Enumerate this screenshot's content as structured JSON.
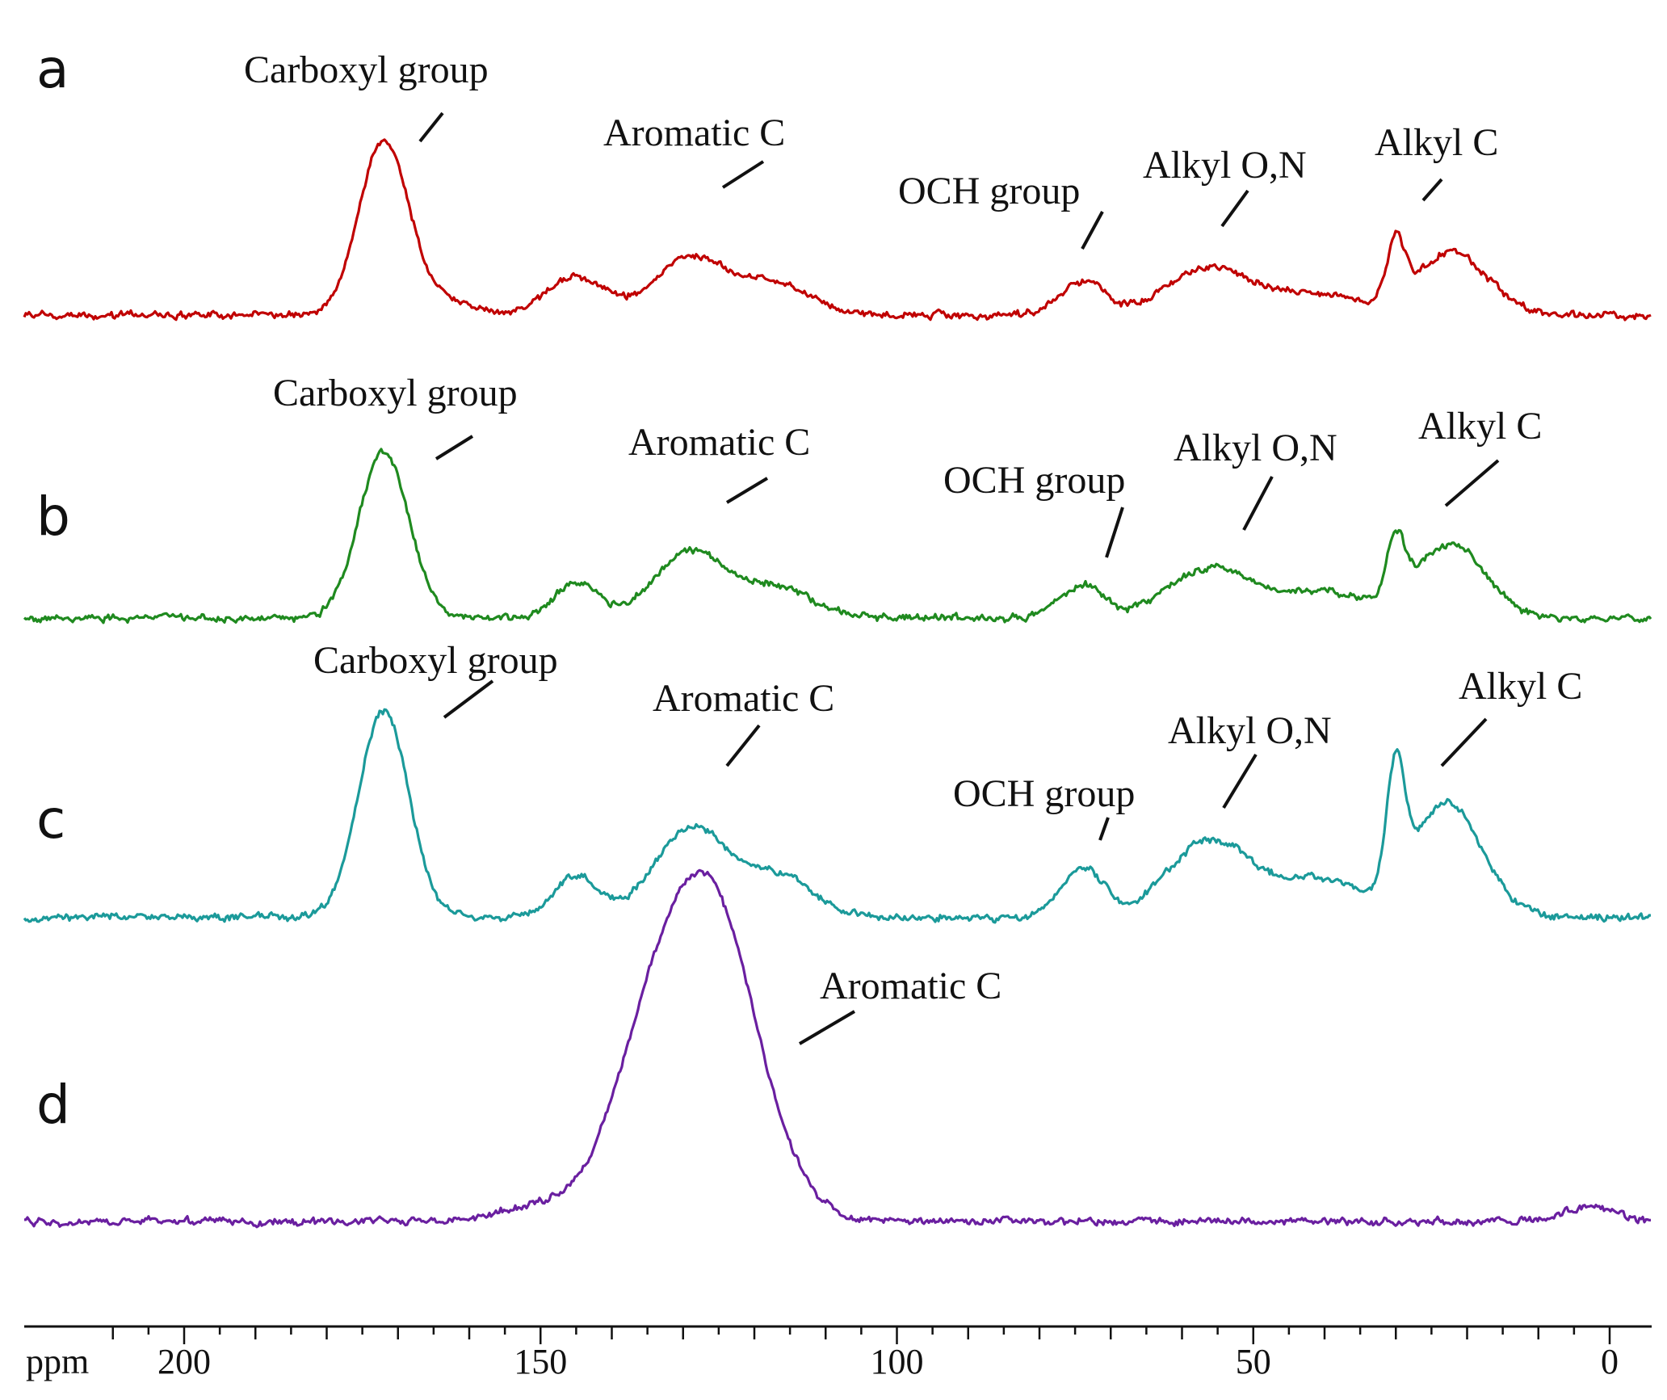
{
  "chart_data": {
    "type": "line",
    "title": "",
    "xlabel": "ppm",
    "ylabel": "",
    "x_axis": {
      "reversed": true,
      "unit_label": "ppm",
      "xlim": [
        215,
        -5
      ],
      "major_ticks": [
        200,
        150,
        100,
        50,
        0
      ],
      "major_tick_labels": [
        "200",
        "150",
        "100",
        "50",
        "0"
      ],
      "minor_tick_step": 10
    },
    "grid": false,
    "series": [
      {
        "name": "a",
        "color": "#c00000",
        "peaks": [
          {
            "ppm": 172,
            "height": 1.0,
            "width": 3.5
          },
          {
            "ppm": 163,
            "height": 0.08,
            "width": 4
          },
          {
            "ppm": 145,
            "height": 0.22,
            "width": 4
          },
          {
            "ppm": 129,
            "height": 0.33,
            "width": 5
          },
          {
            "ppm": 117,
            "height": 0.18,
            "width": 5
          },
          {
            "ppm": 74,
            "height": 0.2,
            "width": 3
          },
          {
            "ppm": 56,
            "height": 0.28,
            "width": 6
          },
          {
            "ppm": 40,
            "height": 0.12,
            "width": 6
          },
          {
            "ppm": 30,
            "height": 0.34,
            "width": 1.3
          },
          {
            "ppm": 24,
            "height": 0.26,
            "width": 4
          },
          {
            "ppm": 19,
            "height": 0.18,
            "width": 4
          }
        ],
        "annotations": [
          {
            "label": "Carboxyl group",
            "ppm": 172
          },
          {
            "label": "Aromatic C",
            "ppm": 129
          },
          {
            "label": "OCH group",
            "ppm": 74
          },
          {
            "label": "Alkyl O,N",
            "ppm": 56
          },
          {
            "label": "Alkyl C",
            "ppm": 24
          }
        ]
      },
      {
        "name": "b",
        "color": "#1f8a1f",
        "peaks": [
          {
            "ppm": 172,
            "height": 1.0,
            "width": 3.5
          },
          {
            "ppm": 145,
            "height": 0.22,
            "width": 3
          },
          {
            "ppm": 129,
            "height": 0.4,
            "width": 5
          },
          {
            "ppm": 117,
            "height": 0.18,
            "width": 5
          },
          {
            "ppm": 74,
            "height": 0.2,
            "width": 3
          },
          {
            "ppm": 56,
            "height": 0.3,
            "width": 6
          },
          {
            "ppm": 40,
            "height": 0.16,
            "width": 6
          },
          {
            "ppm": 30,
            "height": 0.38,
            "width": 1.3
          },
          {
            "ppm": 24,
            "height": 0.33,
            "width": 4
          },
          {
            "ppm": 19,
            "height": 0.2,
            "width": 4
          }
        ],
        "annotations": [
          {
            "label": "Carboxyl group",
            "ppm": 172
          },
          {
            "label": "Aromatic C",
            "ppm": 129
          },
          {
            "label": "OCH group",
            "ppm": 73
          },
          {
            "label": "Alkyl O,N",
            "ppm": 55
          },
          {
            "label": "Alkyl C",
            "ppm": 24
          }
        ]
      },
      {
        "name": "c",
        "color": "#1b9a9a",
        "peaks": [
          {
            "ppm": 172,
            "height": 1.0,
            "width": 3.5
          },
          {
            "ppm": 145,
            "height": 0.2,
            "width": 3
          },
          {
            "ppm": 129,
            "height": 0.43,
            "width": 5
          },
          {
            "ppm": 117,
            "height": 0.2,
            "width": 5
          },
          {
            "ppm": 74,
            "height": 0.24,
            "width": 3
          },
          {
            "ppm": 56,
            "height": 0.37,
            "width": 6
          },
          {
            "ppm": 40,
            "height": 0.18,
            "width": 6
          },
          {
            "ppm": 30,
            "height": 0.6,
            "width": 1.3
          },
          {
            "ppm": 24,
            "height": 0.45,
            "width": 4
          },
          {
            "ppm": 19,
            "height": 0.2,
            "width": 4
          }
        ],
        "annotations": [
          {
            "label": "Carboxyl group",
            "ppm": 172
          },
          {
            "label": "Aromatic C",
            "ppm": 129
          },
          {
            "label": "OCH group",
            "ppm": 73
          },
          {
            "label": "Alkyl O,N",
            "ppm": 55
          },
          {
            "label": "Alkyl C",
            "ppm": 24
          }
        ]
      },
      {
        "name": "d",
        "color": "#6a1fa0",
        "peaks": [
          {
            "ppm": 127,
            "height": 1.0,
            "width": 7
          },
          {
            "ppm": 137,
            "height": 0.22,
            "width": 5
          },
          {
            "ppm": 150,
            "height": 0.05,
            "width": 5
          },
          {
            "ppm": 3,
            "height": 0.04,
            "width": 4
          }
        ],
        "annotations": [
          {
            "label": "Aromatic C",
            "ppm": 127
          }
        ]
      }
    ]
  }
}
